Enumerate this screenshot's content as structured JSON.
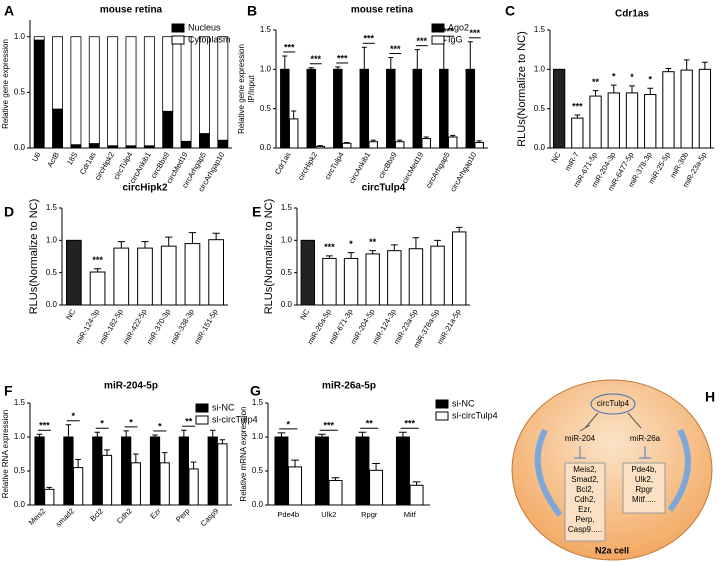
{
  "chart_data": [
    {
      "type": "stacked-bar",
      "panel": "A",
      "title": "mouse retina",
      "ylabel": "Relative gene expression",
      "categories": [
        "U6",
        "ActB",
        "18S",
        "Cdr1as",
        "circHipk2",
        "circTulp4",
        "circAnkib1",
        "circBbs9",
        "circMed19",
        "circArhgap5",
        "circArhgap10"
      ],
      "series": [
        {
          "name": "Nucleus",
          "color": "#000000",
          "values": [
            0.97,
            0.35,
            0.03,
            0.04,
            0.02,
            0.02,
            0.02,
            0.33,
            0.06,
            0.13,
            0.07
          ]
        },
        {
          "name": "Cytoplasm",
          "color": "#ffffff",
          "values": [
            0.03,
            0.65,
            0.97,
            0.96,
            0.98,
            0.98,
            0.98,
            0.67,
            0.94,
            0.87,
            0.93
          ]
        }
      ],
      "ylim": [
        0,
        1.15
      ],
      "yticks": [
        {
          "value": 0,
          "label": "0.0"
        },
        0.5,
        {
          "value": 1,
          "label": "1.0"
        }
      ],
      "legend": "upper right"
    },
    {
      "type": "grouped-bar",
      "panel": "B",
      "title": "mouse retina",
      "ylabel": [
        "Relative gene expression",
        "IP/Input"
      ],
      "categories": [
        "Cdr1as",
        "circHipk2",
        "circTulp4",
        "circAnkib1",
        "circBbs9",
        "circMed19",
        "circArhgap5",
        "circArhgap10"
      ],
      "series": [
        {
          "name": "Ago2",
          "color": "#000000",
          "values": [
            1.0,
            1.0,
            1.0,
            1.0,
            1.0,
            1.0,
            1.0,
            1.0
          ],
          "errors": [
            0.17,
            0.02,
            0.03,
            0.28,
            0.15,
            0.25,
            0.37,
            0.35
          ]
        },
        {
          "name": "IgG",
          "color": "#ffffff",
          "values": [
            0.37,
            0.02,
            0.06,
            0.08,
            0.08,
            0.12,
            0.14,
            0.07
          ],
          "errors": [
            0.1,
            0.01,
            0.01,
            0.02,
            0.02,
            0.02,
            0.02,
            0.02
          ]
        }
      ],
      "annotations": [
        "***",
        "***",
        "***",
        "***",
        "***",
        "***",
        "***",
        "***"
      ],
      "ylim": [
        0,
        1.5
      ],
      "yticks": [
        {
          "value": 0,
          "label": "0.0"
        },
        0.5,
        {
          "value": 1,
          "label": "1.0"
        },
        1.5
      ],
      "legend": "upper right"
    },
    {
      "type": "bar",
      "panel": "C",
      "title": "Cdr1as",
      "ylabel": "RLUs(Normalize to NC)",
      "categories": [
        "NC",
        "miR-7",
        "miR-671-5p",
        "miR-204-3p",
        "miR-6477-5p",
        "miR-378-3p",
        "miR-25-5p",
        "miR-30b",
        "miR-23a-5p"
      ],
      "values": [
        1.0,
        0.38,
        0.66,
        0.7,
        0.7,
        0.68,
        0.97,
        0.99,
        1.0
      ],
      "errors": [
        null,
        0.04,
        0.07,
        0.1,
        0.09,
        0.08,
        0.04,
        0.13,
        0.09
      ],
      "colors": [
        "#222222",
        "#ffffff",
        "#ffffff",
        "#ffffff",
        "#ffffff",
        "#ffffff",
        "#ffffff",
        "#ffffff",
        "#ffffff"
      ],
      "annotations": [
        null,
        "***",
        "**",
        "*",
        "*",
        "*",
        null,
        null,
        null
      ],
      "ylim": [
        0,
        1.5
      ],
      "yticks": [
        {
          "value": 0,
          "label": "0.0"
        },
        0.5,
        {
          "value": 1,
          "label": "1.0"
        },
        1.5
      ]
    },
    {
      "type": "bar",
      "panel": "D",
      "title": "circHipk2",
      "ylabel": "RLUs(Normalize to NC)",
      "categories": [
        "NC",
        "miR-124-3p",
        "miR-182-5p",
        "miR-422-5p",
        "miR-370-3p",
        "miR-338-3p",
        "miR-151-5p"
      ],
      "values": [
        1.0,
        0.51,
        0.88,
        0.88,
        0.91,
        0.95,
        1.01
      ],
      "errors": [
        null,
        0.05,
        0.1,
        0.1,
        0.14,
        0.17,
        0.1
      ],
      "colors": [
        "#222222",
        "#ffffff",
        "#ffffff",
        "#ffffff",
        "#ffffff",
        "#ffffff",
        "#ffffff"
      ],
      "annotations": [
        null,
        "***",
        null,
        null,
        null,
        null,
        null
      ],
      "ylim": [
        0,
        1.5
      ],
      "yticks": [
        {
          "value": 0,
          "label": "0.0"
        },
        0.5,
        {
          "value": 1,
          "label": "1.0"
        },
        1.5
      ]
    },
    {
      "type": "bar",
      "panel": "E",
      "title": "circTulp4",
      "ylabel": "RLUs(Normalize to NC)",
      "categories": [
        "NC",
        "miR-26a-5p",
        "miR-671-3p",
        "miR-204-5p",
        "miR-124-3p",
        "miR-23a-5p",
        "miR-378a-5p",
        "miR-21a-5p"
      ],
      "values": [
        1.0,
        0.72,
        0.72,
        0.79,
        0.84,
        0.87,
        0.91,
        1.13
      ],
      "errors": [
        null,
        0.04,
        0.09,
        0.05,
        0.09,
        0.17,
        0.09,
        0.07
      ],
      "colors": [
        "#222222",
        "#ffffff",
        "#ffffff",
        "#ffffff",
        "#ffffff",
        "#ffffff",
        "#ffffff",
        "#ffffff"
      ],
      "annotations": [
        null,
        "***",
        "*",
        "**",
        null,
        null,
        null,
        null
      ],
      "ylim": [
        0,
        1.5
      ],
      "yticks": [
        {
          "value": 0,
          "label": "0.0"
        },
        0.5,
        {
          "value": 1,
          "label": "1.0"
        },
        1.5
      ]
    },
    {
      "type": "grouped-bar",
      "panel": "F",
      "title": "miR-204-5p",
      "ylabel": "Relative RNA expression",
      "categories": [
        "Meis2",
        "smad2",
        "Bcl2",
        "Cdh2",
        "Ezr",
        "Perp",
        "Casp9"
      ],
      "series": [
        {
          "name": "si-NC",
          "color": "#000000",
          "values": [
            1.0,
            1.0,
            1.0,
            1.0,
            1.0,
            1.0,
            1.0
          ],
          "errors": [
            0.04,
            0.18,
            0.07,
            0.09,
            0.03,
            0.1,
            0.1
          ]
        },
        {
          "name": "si-circTulp4",
          "color": "#ffffff",
          "values": [
            0.23,
            0.55,
            0.73,
            0.62,
            0.62,
            0.53,
            0.9
          ],
          "errors": [
            0.03,
            0.12,
            0.08,
            0.13,
            0.15,
            0.1,
            0.06
          ]
        }
      ],
      "annotations": [
        "***",
        "*",
        "*",
        "*",
        "*",
        "**",
        null
      ],
      "ylim": [
        0,
        1.5
      ],
      "yticks": [
        {
          "value": 0,
          "label": "0.0"
        },
        0.5,
        {
          "value": 1,
          "label": "1.0"
        },
        1.5
      ],
      "legend": "upper right"
    },
    {
      "type": "grouped-bar",
      "panel": "G",
      "title": "miR-26a-5p",
      "ylabel": "Relative mRNA expression",
      "categories": [
        "Pde4b",
        "Ulk2",
        "Rpgr",
        "Mitf"
      ],
      "series": [
        {
          "name": "si-NC",
          "color": "#000000",
          "values": [
            1.0,
            1.0,
            1.0,
            1.0
          ],
          "errors": [
            0.06,
            0.04,
            0.07,
            0.07
          ]
        },
        {
          "name": "si-circTulp4",
          "color": "#ffffff",
          "values": [
            0.56,
            0.36,
            0.51,
            0.29
          ],
          "errors": [
            0.1,
            0.04,
            0.1,
            0.05
          ]
        }
      ],
      "annotations": [
        "*",
        "***",
        "**",
        "***"
      ],
      "ylim": [
        0,
        1.5
      ],
      "yticks": [
        {
          "value": 0,
          "label": "0.0"
        },
        0.5,
        {
          "value": 1,
          "label": "1.0"
        },
        1.5
      ],
      "legend": "upper right"
    }
  ],
  "diagram": {
    "panel": "H",
    "center": "circTulp4",
    "left": "miR-204",
    "right": "miR-26a",
    "left_targets": [
      "Meis2,",
      "Smad2,",
      "Bcl2,",
      "Cdh2,",
      "Ezr,",
      "Perp,",
      "Casp9....."
    ],
    "right_targets": [
      "Pde4b,",
      "Ulk2,",
      "Rpgr",
      "Mitf....."
    ],
    "cell": "N2a cell"
  }
}
